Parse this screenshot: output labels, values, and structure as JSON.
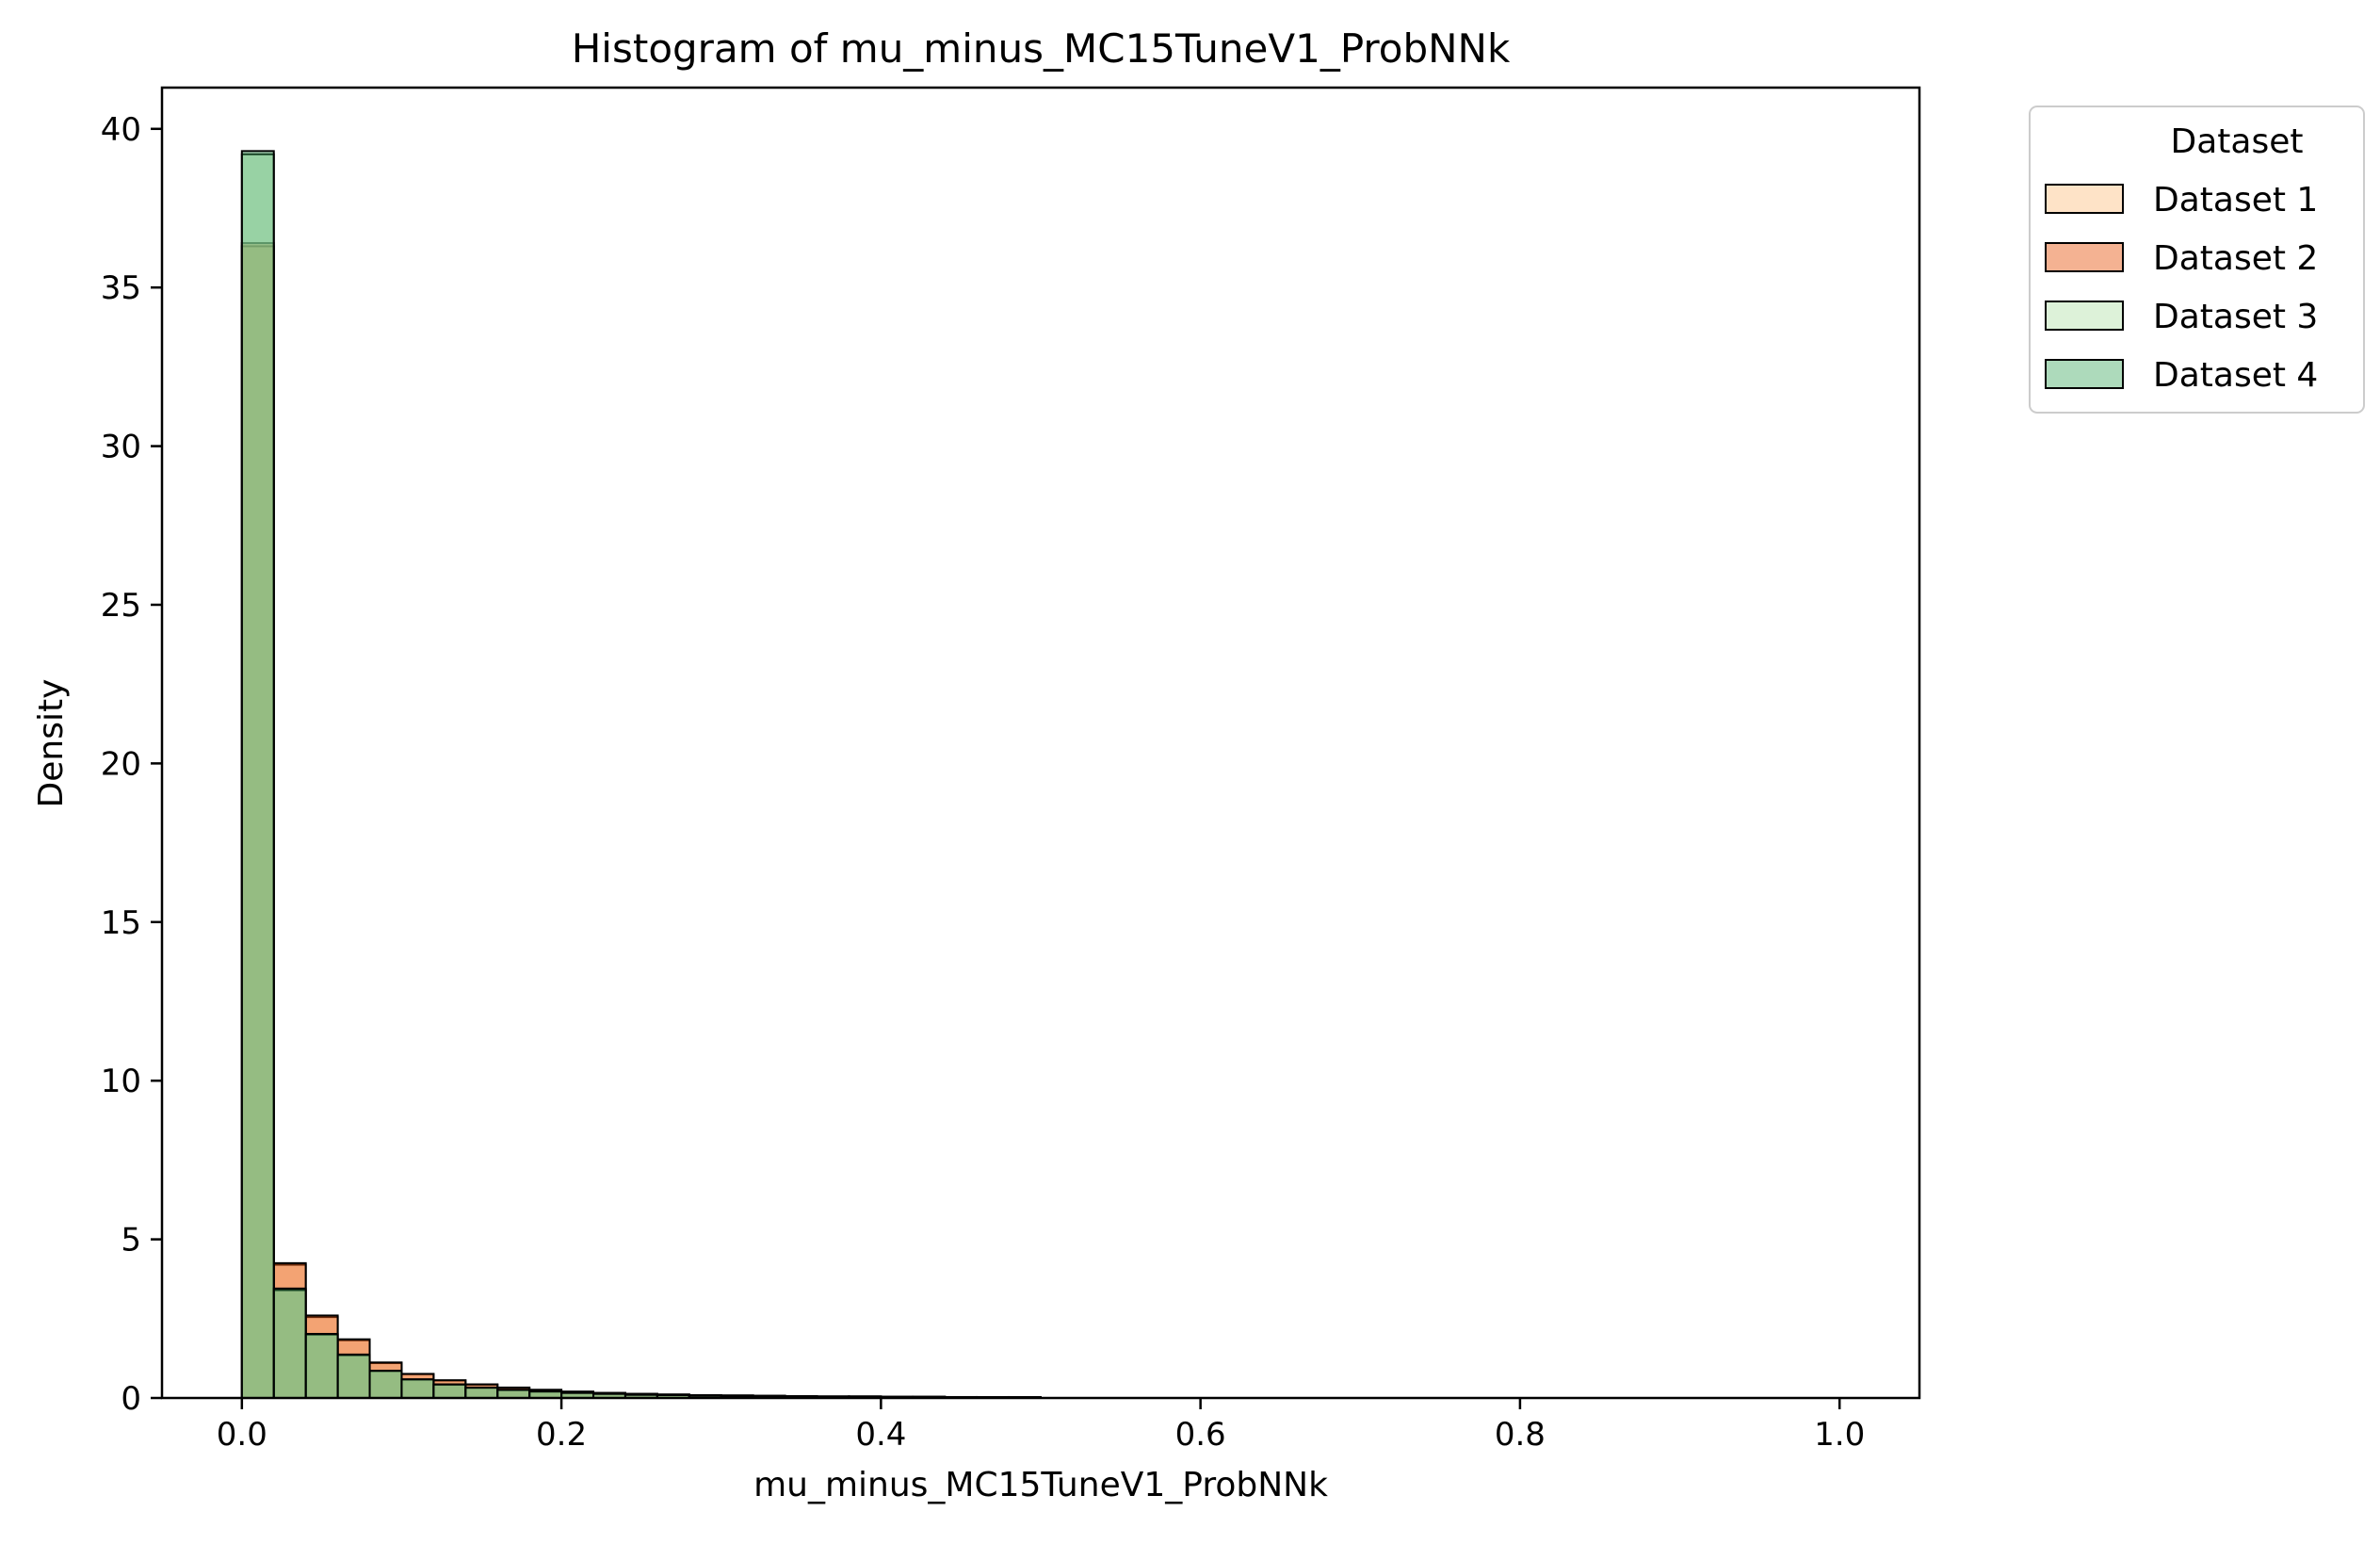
{
  "chart_data": {
    "type": "bar",
    "title": "Histogram of mu_minus_MC15TuneV1_ProbNNk",
    "xlabel": "mu_minus_MC15TuneV1_ProbNNk",
    "ylabel": "Density",
    "xlim": [
      -0.05,
      1.05
    ],
    "ylim": [
      0,
      41.3
    ],
    "xticks": [
      0.0,
      0.2,
      0.4,
      0.6,
      0.8,
      1.0
    ],
    "xtick_labels": [
      "0.0",
      "0.2",
      "0.4",
      "0.6",
      "0.8",
      "1.0"
    ],
    "yticks": [
      0,
      5,
      10,
      15,
      20,
      25,
      30,
      35,
      40
    ],
    "ytick_labels": [
      "0",
      "5",
      "10",
      "15",
      "20",
      "25",
      "30",
      "35",
      "40"
    ],
    "grid": false,
    "bin_width": 0.02,
    "bin_starts": [
      0.0,
      0.02,
      0.04,
      0.06,
      0.08,
      0.1,
      0.12,
      0.14,
      0.16,
      0.18,
      0.2,
      0.22,
      0.24,
      0.26,
      0.28,
      0.3,
      0.32,
      0.34,
      0.36,
      0.38,
      0.4,
      0.42,
      0.44,
      0.46,
      0.48
    ],
    "legend": {
      "title": "Dataset",
      "position": "outside upper right"
    },
    "series": [
      {
        "name": "Dataset 1",
        "color": "#fdd0a2",
        "alpha": 0.6,
        "values": [
          36.3,
          4.2,
          2.55,
          1.82,
          1.1,
          0.75,
          0.55,
          0.42,
          0.32,
          0.25,
          0.2,
          0.16,
          0.13,
          0.11,
          0.09,
          0.08,
          0.07,
          0.06,
          0.05,
          0.05,
          0.04,
          0.04,
          0.03,
          0.03,
          0.03
        ]
      },
      {
        "name": "Dataset 2",
        "color": "#e6550d",
        "alpha": 0.45,
        "values": [
          36.4,
          4.25,
          2.6,
          1.85,
          1.12,
          0.76,
          0.56,
          0.43,
          0.33,
          0.26,
          0.2,
          0.16,
          0.13,
          0.11,
          0.09,
          0.08,
          0.07,
          0.06,
          0.05,
          0.05,
          0.04,
          0.04,
          0.03,
          0.03,
          0.03
        ]
      },
      {
        "name": "Dataset 3",
        "color": "#c7e9c0",
        "alpha": 0.6,
        "values": [
          39.2,
          3.4,
          2.0,
          1.35,
          0.85,
          0.58,
          0.42,
          0.32,
          0.25,
          0.2,
          0.16,
          0.13,
          0.1,
          0.09,
          0.07,
          0.06,
          0.05,
          0.05,
          0.04,
          0.04,
          0.03,
          0.03,
          0.03,
          0.02,
          0.02
        ]
      },
      {
        "name": "Dataset 4",
        "color": "#31a354",
        "alpha": 0.4,
        "values": [
          39.3,
          3.45,
          2.02,
          1.37,
          0.86,
          0.59,
          0.43,
          0.33,
          0.26,
          0.21,
          0.16,
          0.13,
          0.1,
          0.09,
          0.07,
          0.06,
          0.05,
          0.05,
          0.04,
          0.04,
          0.03,
          0.03,
          0.03,
          0.02,
          0.02
        ]
      }
    ]
  }
}
